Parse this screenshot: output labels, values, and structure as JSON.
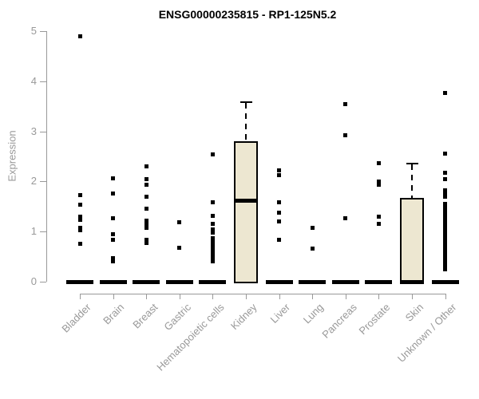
{
  "chart_data": {
    "type": "boxplot",
    "title": "ENSG00000235815 - RP1-125N5.2",
    "ylabel": "Expression",
    "xlabel": "",
    "ylim": [
      0,
      5
    ],
    "yticks": [
      0,
      1,
      2,
      3,
      4,
      5
    ],
    "grid": "off",
    "legend": "none",
    "categories": [
      "Bladder",
      "Brain",
      "Breast",
      "Gastric",
      "Hematopoietic cells",
      "Kidney",
      "Liver",
      "Lung",
      "Pancreas",
      "Prostate",
      "Skin",
      "Unknown / Other"
    ],
    "boxes": [
      {
        "category": "Bladder",
        "median": 0,
        "q1": 0,
        "q3": 0,
        "whisker_low": 0,
        "whisker_high": 0,
        "outliers": [
          4.9,
          1.72,
          1.53,
          1.29,
          1.23,
          1.08,
          1.03,
          0.75
        ]
      },
      {
        "category": "Brain",
        "median": 0,
        "q1": 0,
        "q3": 0,
        "whisker_low": 0,
        "whisker_high": 0,
        "outliers": [
          2.07,
          1.76,
          1.26,
          0.95,
          0.84,
          0.47,
          0.4
        ]
      },
      {
        "category": "Breast",
        "median": 0,
        "q1": 0,
        "q3": 0,
        "whisker_low": 0,
        "whisker_high": 0,
        "outliers": [
          2.3,
          2.05,
          1.94,
          1.69,
          1.45,
          1.22,
          1.15,
          1.08,
          0.84,
          0.77
        ]
      },
      {
        "category": "Gastric",
        "median": 0,
        "q1": 0,
        "q3": 0,
        "whisker_low": 0,
        "whisker_high": 0,
        "outliers": [
          1.18,
          0.68
        ]
      },
      {
        "category": "Hematopoietic cells",
        "median": 0,
        "q1": 0,
        "q3": 0,
        "whisker_low": 0,
        "whisker_high": 0,
        "outliers": [
          2.54,
          1.59,
          1.31,
          1.16,
          1.04,
          0.98,
          0.87,
          0.8,
          0.72,
          0.65,
          0.6,
          0.53,
          0.47,
          0.4
        ]
      },
      {
        "category": "Kidney",
        "median": 1.62,
        "q1": 0,
        "q3": 2.8,
        "whisker_low": 0,
        "whisker_high": 3.6,
        "outliers": []
      },
      {
        "category": "Liver",
        "median": 0,
        "q1": 0,
        "q3": 0,
        "whisker_low": 0,
        "whisker_high": 0,
        "outliers": [
          2.22,
          2.12,
          1.59,
          1.37,
          1.21,
          0.84
        ]
      },
      {
        "category": "Lung",
        "median": 0,
        "q1": 0,
        "q3": 0,
        "whisker_low": 0,
        "whisker_high": 0,
        "outliers": [
          1.08,
          0.66
        ]
      },
      {
        "category": "Pancreas",
        "median": 0,
        "q1": 0,
        "q3": 0,
        "whisker_low": 0,
        "whisker_high": 0,
        "outliers": [
          3.55,
          2.92,
          1.26
        ]
      },
      {
        "category": "Prostate",
        "median": 0,
        "q1": 0,
        "q3": 0,
        "whisker_low": 0,
        "whisker_high": 0,
        "outliers": [
          2.36,
          2.0,
          1.93,
          1.29,
          1.16
        ]
      },
      {
        "category": "Skin",
        "median": 0,
        "q1": 0,
        "q3": 1.67,
        "whisker_low": 0,
        "whisker_high": 2.38,
        "outliers": []
      },
      {
        "category": "Unknown / Other",
        "median": 0,
        "q1": 0,
        "q3": 0,
        "whisker_low": 0,
        "whisker_high": 0,
        "outliers": [
          3.77,
          2.55,
          2.17,
          2.04,
          1.83,
          1.75,
          1.69,
          1.56,
          1.5,
          1.42,
          1.35,
          1.27,
          1.2,
          1.12,
          1.05,
          0.98,
          0.9,
          0.85,
          0.78,
          0.72,
          0.65,
          0.58,
          0.52,
          0.45,
          0.38,
          0.3,
          0.25
        ]
      }
    ],
    "colors": {
      "box_fill": "#EDE7D1",
      "box_border": "#000000",
      "median": "#000000",
      "outlier_point": "#000000",
      "axis": "#999999",
      "tick_text": "#999999",
      "title_text": "#000000",
      "background": "#ffffff"
    }
  }
}
